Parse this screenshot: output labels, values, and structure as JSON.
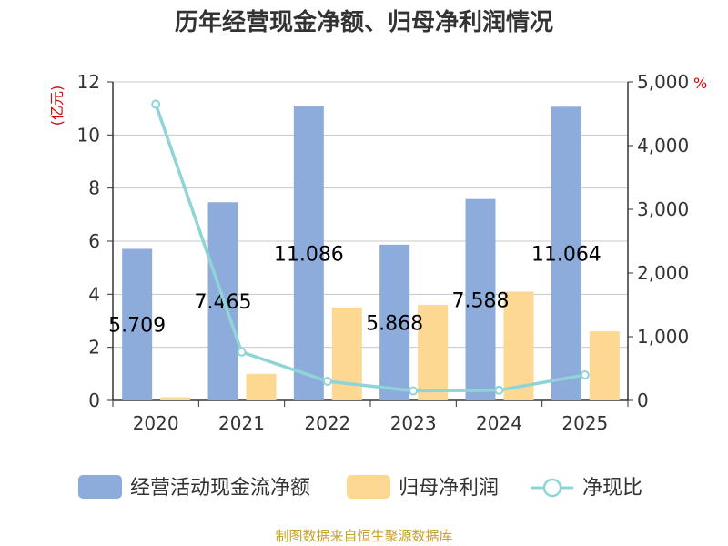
{
  "chart_data": {
    "type": "bar",
    "title": "历年经营现金净额、归母净利润情况",
    "categories": [
      "2020",
      "2021",
      "2022",
      "2023",
      "2024",
      "2025"
    ],
    "y_left": {
      "unit": "(亿元)",
      "ylim": [
        0,
        12
      ],
      "ticks": [
        "0",
        "2",
        "4",
        "6",
        "8",
        "10",
        "12"
      ]
    },
    "y_right": {
      "unit": "%",
      "ylim": [
        0,
        5000
      ],
      "ticks": [
        "0",
        "1,000",
        "2,000",
        "3,000",
        "4,000",
        "5,000"
      ]
    },
    "series": [
      {
        "name": "经营活动现金流净额",
        "type": "bar",
        "axis": "left",
        "color": "#8eacdb",
        "values": [
          5.709,
          7.465,
          11.086,
          5.868,
          7.588,
          11.064
        ],
        "labels": [
          "5.709",
          "7.465",
          "11.086",
          "5.868",
          "7.588",
          "11.064"
        ]
      },
      {
        "name": "归母净利润",
        "type": "bar",
        "axis": "left",
        "color": "#fdd893",
        "values": [
          0.12,
          1.0,
          3.5,
          3.6,
          4.1,
          2.6
        ]
      },
      {
        "name": "净现比",
        "type": "line",
        "axis": "right",
        "color": "#8fd4d6",
        "values": [
          4650,
          760,
          300,
          150,
          160,
          400
        ]
      }
    ],
    "grid": true,
    "legend_position": "bottom"
  },
  "source": "制图数据来自恒生聚源数据库"
}
